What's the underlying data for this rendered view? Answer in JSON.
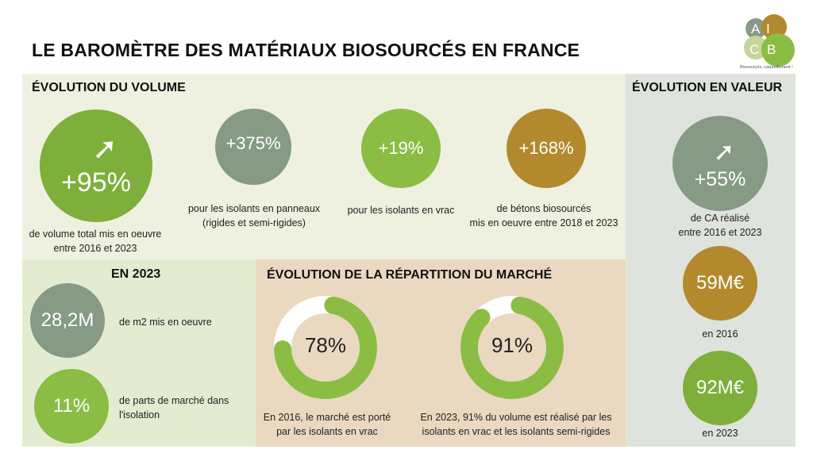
{
  "title": "LE BAROMÈTRE DES MATÉRIAUX BIOSOURCÉS EN FRANCE",
  "logo": {
    "letters": [
      "A",
      "I",
      "C",
      "B"
    ],
    "tagline": "Biosourcés, naturellement !"
  },
  "colors": {
    "green": "#7daf3a",
    "light_green": "#8bbd45",
    "grey_green": "#869a86",
    "brown": "#b3892e"
  },
  "volume": {
    "heading": "ÉVOLUTION DU VOLUME",
    "main": {
      "value": "+95%",
      "icon": "trend-up-arrow-icon",
      "caption1": "de volume total mis en oeuvre",
      "caption2": "entre 2016 et 2023"
    },
    "items": [
      {
        "value": "+375%",
        "caption1": "pour les isolants en panneaux",
        "caption2": "(rigides et semi-rigides)"
      },
      {
        "value": "+19%",
        "caption1": "pour les isolants en vrac",
        "caption2": ""
      },
      {
        "value": "+168%",
        "caption1": "de bétons biosourcés",
        "caption2": "mis en oeuvre entre 2018 et 2023"
      }
    ]
  },
  "valeur": {
    "heading": "ÉVOLUTION EN VALEUR",
    "main": {
      "value": "+55%",
      "icon": "trend-up-arrow-icon",
      "caption1": "de CA réalisé",
      "caption2": "entre 2016 et 2023"
    },
    "y2016": {
      "value": "59M€",
      "caption": "en 2016"
    },
    "y2023": {
      "value": "92M€",
      "caption": "en 2023"
    }
  },
  "en2023": {
    "heading": "EN 2023",
    "items": [
      {
        "value": "28,2M",
        "caption": "de m2 mis en oeuvre"
      },
      {
        "value": "11%",
        "caption": "de parts de marché dans l'isolation"
      }
    ]
  },
  "repartition": {
    "heading": "ÉVOLUTION DE LA RÉPARTITION DU MARCHÉ",
    "donuts": [
      {
        "value": "78%",
        "percent": 78,
        "caption1": "En 2016, le marché est porté",
        "caption2": "par les isolants en vrac"
      },
      {
        "value": "91%",
        "percent": 91,
        "caption1": "En 2023, 91% du volume est réalisé par les",
        "caption2": "isolants en vrac et les isolants semi-rigides"
      }
    ]
  }
}
